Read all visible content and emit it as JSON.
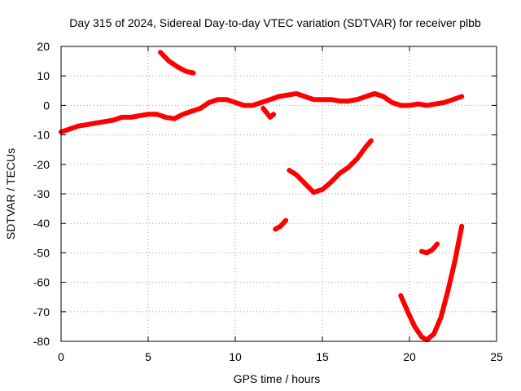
{
  "chart_data": {
    "type": "line",
    "title": "Day 315 of 2024, Sidereal Day-to-day VTEC variation (SDTVAR) for receiver plbb",
    "xlabel": "GPS time / hours",
    "ylabel": "SDTVAR / TECUs",
    "xlim": [
      0,
      25
    ],
    "ylim": [
      -80,
      20
    ],
    "xticks": [
      0,
      5,
      10,
      15,
      20,
      25
    ],
    "yticks": [
      -80,
      -70,
      -60,
      -50,
      -40,
      -30,
      -20,
      -10,
      0,
      10,
      20
    ],
    "grid": true,
    "legend": "none",
    "series_color": "#ff0000",
    "series": [
      {
        "x": [
          0.0,
          0.5,
          1.0,
          1.5,
          2.0,
          2.5,
          3.0,
          3.5,
          4.0,
          4.5,
          5.0,
          5.5,
          6.0,
          6.5,
          7.0,
          7.5,
          8.0,
          8.5,
          9.0,
          9.5,
          10.0,
          10.5,
          11.0,
          11.5,
          12.0,
          12.5,
          13.0,
          13.5,
          14.0,
          14.5,
          15.0,
          15.5,
          16.0,
          16.5,
          17.0,
          17.5,
          18.0,
          18.5,
          19.0,
          19.5,
          20.0,
          20.5,
          21.0,
          21.5,
          22.0,
          22.5,
          23.0
        ],
        "y": [
          -9,
          -8,
          -7,
          -6.5,
          -6,
          -5.5,
          -5,
          -4,
          -4,
          -3.5,
          -3,
          -3,
          -4,
          -4.5,
          -3,
          -2,
          -1,
          1,
          2,
          2,
          1,
          0,
          0,
          1,
          2,
          3,
          3.5,
          4,
          3,
          2,
          2,
          2,
          1.5,
          1.5,
          2,
          3,
          4,
          3,
          1,
          0,
          0,
          0.5,
          0,
          0.5,
          1,
          2,
          3
        ]
      },
      {
        "x": [
          11.6,
          11.8,
          12.0,
          12.2
        ],
        "y": [
          -1,
          -2.5,
          -4,
          -3
        ]
      },
      {
        "x": [
          5.7,
          6.2,
          6.7,
          7.2,
          7.6
        ],
        "y": [
          18,
          15,
          13,
          11.5,
          11
        ]
      },
      {
        "x": [
          13.1,
          13.5,
          14.0,
          14.5,
          15.0,
          15.5,
          16.0,
          16.5,
          17.0,
          17.5,
          17.8
        ],
        "y": [
          -22,
          -23.5,
          -26.5,
          -29.5,
          -28.5,
          -26,
          -23,
          -21,
          -18,
          -14,
          -12
        ]
      },
      {
        "x": [
          12.3,
          12.6,
          12.9
        ],
        "y": [
          -42,
          -41,
          -39
        ]
      },
      {
        "x": [
          19.5,
          19.9,
          20.3,
          20.7,
          21.0,
          21.4,
          21.8,
          22.2,
          22.6,
          23.0
        ],
        "y": [
          -64.5,
          -70,
          -75,
          -78.5,
          -79.5,
          -77.5,
          -72,
          -63,
          -53,
          -41
        ]
      },
      {
        "x": [
          20.7,
          21.0,
          21.3,
          21.6
        ],
        "y": [
          -49.5,
          -50,
          -49,
          -47
        ]
      }
    ]
  }
}
